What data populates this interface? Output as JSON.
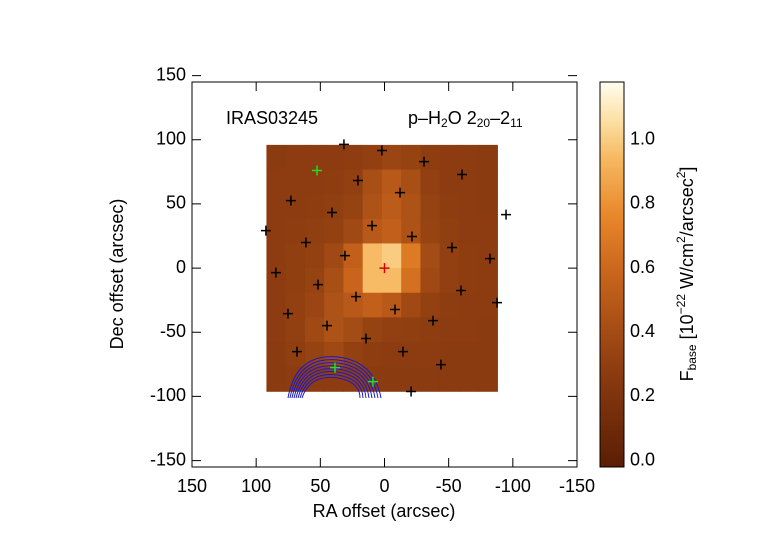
{
  "chart_data": {
    "type": "image",
    "x_label": "RA offset (arcsec)",
    "y_label": "Dec offset (arcsec)",
    "xlim": [
      150,
      -150
    ],
    "ylim": [
      -155,
      145
    ],
    "xticks": [
      150,
      100,
      50,
      0,
      -50,
      -100,
      -150
    ],
    "yticks": [
      -150,
      -100,
      -50,
      0,
      50,
      100,
      150
    ],
    "source_label": "IRAS03245",
    "line_label": [
      "p–H",
      "2",
      "O 2",
      "20",
      "–2",
      "11"
    ],
    "colorbar_label": [
      "F",
      "base",
      " [10",
      "−22",
      " W/cm",
      "2",
      "/arcsec",
      "2",
      "]"
    ],
    "clim": [
      -0.02,
      1.18
    ],
    "cticks": [
      {
        "value": 0,
        "label": "0.0"
      },
      {
        "value": 0.2,
        "label": "0.2"
      },
      {
        "value": 0.4,
        "label": "0.4"
      },
      {
        "value": 0.6,
        "label": "0.6"
      },
      {
        "value": 0.8,
        "label": "0.8"
      },
      {
        "value": 1.0,
        "label": "1.0"
      }
    ],
    "image": {
      "xlim": [
        92,
        -88
      ],
      "ylim": [
        -96,
        96
      ],
      "z": [
        [
          0.27,
          0.28,
          0.28,
          0.28,
          0.29,
          0.31,
          0.35,
          0.33,
          0.29,
          0.28,
          0.28,
          0.27
        ],
        [
          0.28,
          0.28,
          0.28,
          0.29,
          0.31,
          0.42,
          0.5,
          0.42,
          0.31,
          0.28,
          0.28,
          0.27
        ],
        [
          0.28,
          0.28,
          0.29,
          0.3,
          0.33,
          0.45,
          0.52,
          0.45,
          0.33,
          0.29,
          0.28,
          0.27
        ],
        [
          0.28,
          0.29,
          0.3,
          0.32,
          0.38,
          0.5,
          0.55,
          0.45,
          0.34,
          0.3,
          0.28,
          0.28
        ],
        [
          0.28,
          0.3,
          0.32,
          0.38,
          0.55,
          0.95,
          1.0,
          0.7,
          0.4,
          0.31,
          0.29,
          0.28
        ],
        [
          0.28,
          0.3,
          0.33,
          0.42,
          0.58,
          0.95,
          0.95,
          0.65,
          0.38,
          0.31,
          0.29,
          0.28
        ],
        [
          0.28,
          0.31,
          0.35,
          0.45,
          0.5,
          0.55,
          0.5,
          0.38,
          0.32,
          0.29,
          0.28,
          0.28
        ],
        [
          0.28,
          0.31,
          0.38,
          0.45,
          0.4,
          0.33,
          0.31,
          0.3,
          0.29,
          0.28,
          0.28,
          0.27
        ],
        [
          0.27,
          0.3,
          0.33,
          0.38,
          0.32,
          0.29,
          0.28,
          0.28,
          0.28,
          0.27,
          0.27,
          0.27
        ],
        [
          0.27,
          0.28,
          0.28,
          0.28,
          0.28,
          0.27,
          0.27,
          0.27,
          0.27,
          0.27,
          0.27,
          0.27
        ]
      ]
    },
    "crosses": [
      {
        "color": "#000000",
        "x": [
          31.6,
          2,
          -30.8,
          -60.4,
          20.7,
          -12.1,
          72.9,
          40.9,
          -94.7,
          9.7,
          92.4,
          61.2,
          -21.4,
          -52.6,
          30.8,
          -82.2,
          84.6,
          51.8,
          -59.6,
          22.2,
          -87.7,
          -8.2,
          75.2,
          -37.8,
          44.8,
          14.4,
          68.2,
          -14.4,
          -44,
          -20.7
        ],
        "y": [
          96.4,
          91.6,
          83,
          72.9,
          68.2,
          58.8,
          52.6,
          43.3,
          41.7,
          33.1,
          29.2,
          19.9,
          24.6,
          16,
          9.7,
          7.4,
          -3.5,
          -12.9,
          -17.5,
          -22.2,
          -26.9,
          -32.3,
          -35.5,
          -40.9,
          -44.8,
          -54.9,
          -65.1,
          -65.1,
          -75.2,
          -96.2
        ]
      },
      {
        "color": "#22dd22",
        "x": [
          52.6,
          38.6,
          9
        ],
        "y": [
          76,
          -77.6,
          -88.5
        ]
      },
      {
        "color": "#dd0000",
        "x": [
          0
        ],
        "y": [
          0
        ]
      }
    ]
  }
}
